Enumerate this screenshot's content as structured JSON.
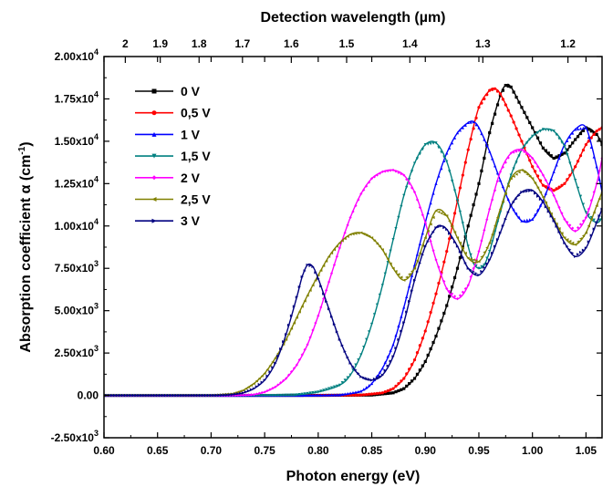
{
  "chart_data": {
    "type": "line",
    "xlabel": "Photon energy (eV)",
    "x2label": "Detection wavelength (µm)",
    "ylabel_main": "Absorption coefficient α (cm",
    "ylabel_sup": "-1",
    "ylabel_end": ")",
    "xlim": [
      0.6,
      1.065
    ],
    "ylim": [
      -2500,
      20000
    ],
    "x_ticks": [
      0.6,
      0.65,
      0.7,
      0.75,
      0.8,
      0.85,
      0.9,
      0.95,
      1.0,
      1.05
    ],
    "x_tick_labels": [
      "0.60",
      "0.65",
      "0.70",
      "0.75",
      "0.80",
      "0.85",
      "0.90",
      "0.95",
      "1.00",
      "1.05"
    ],
    "y_ticks": [
      -2500,
      0,
      2500,
      5000,
      7500,
      10000,
      12500,
      15000,
      17500,
      20000
    ],
    "y_tick_labels": [
      {
        "mant": "-2.50x10",
        "exp": "3"
      },
      {
        "mant": "0.00",
        "exp": ""
      },
      {
        "mant": "2.50x10",
        "exp": "3"
      },
      {
        "mant": "5.00x10",
        "exp": "3"
      },
      {
        "mant": "7.50x10",
        "exp": "3"
      },
      {
        "mant": "1.00x10",
        "exp": "4"
      },
      {
        "mant": "1.25x10",
        "exp": "4"
      },
      {
        "mant": "1.50x10",
        "exp": "4"
      },
      {
        "mant": "1.75x10",
        "exp": "4"
      },
      {
        "mant": "2.00x10",
        "exp": "4"
      }
    ],
    "top_ticks": [
      {
        "um": 2.0,
        "label": "2"
      },
      {
        "um": 1.9,
        "label": "1.9"
      },
      {
        "um": 1.8,
        "label": "1.8"
      },
      {
        "um": 1.7,
        "label": "1.7"
      },
      {
        "um": 1.6,
        "label": "1.6"
      },
      {
        "um": 1.5,
        "label": "1.5"
      },
      {
        "um": 1.4,
        "label": "1.4"
      },
      {
        "um": 1.3,
        "label": "1.3"
      },
      {
        "um": 1.2,
        "label": "1.2"
      }
    ],
    "grid": false,
    "legend_position": "top-left",
    "series": [
      {
        "name": "0 V",
        "color": "#000000",
        "marker": "square",
        "points": [
          [
            0.6,
            0
          ],
          [
            0.8,
            0
          ],
          [
            0.85,
            20
          ],
          [
            0.87,
            150
          ],
          [
            0.88,
            400
          ],
          [
            0.89,
            1000
          ],
          [
            0.9,
            2000
          ],
          [
            0.91,
            3500
          ],
          [
            0.92,
            5300
          ],
          [
            0.93,
            7500
          ],
          [
            0.94,
            10000
          ],
          [
            0.95,
            12500
          ],
          [
            0.96,
            15500
          ],
          [
            0.97,
            17700
          ],
          [
            0.975,
            18300
          ],
          [
            0.98,
            18200
          ],
          [
            0.99,
            17000
          ],
          [
            1.0,
            15800
          ],
          [
            1.01,
            14600
          ],
          [
            1.02,
            14000
          ],
          [
            1.03,
            14300
          ],
          [
            1.04,
            15100
          ],
          [
            1.05,
            15800
          ],
          [
            1.06,
            15400
          ],
          [
            1.065,
            14800
          ]
        ]
      },
      {
        "name": "0,5 V",
        "color": "#ff0000",
        "marker": "circle",
        "points": [
          [
            0.6,
            0
          ],
          [
            0.8,
            0
          ],
          [
            0.84,
            20
          ],
          [
            0.86,
            150
          ],
          [
            0.87,
            400
          ],
          [
            0.88,
            1000
          ],
          [
            0.89,
            2100
          ],
          [
            0.9,
            3800
          ],
          [
            0.91,
            6000
          ],
          [
            0.92,
            8500
          ],
          [
            0.93,
            11500
          ],
          [
            0.94,
            14500
          ],
          [
            0.95,
            17000
          ],
          [
            0.96,
            18000
          ],
          [
            0.965,
            18100
          ],
          [
            0.97,
            17800
          ],
          [
            0.98,
            16500
          ],
          [
            0.99,
            15000
          ],
          [
            1.0,
            13500
          ],
          [
            1.01,
            12400
          ],
          [
            1.02,
            12100
          ],
          [
            1.03,
            12500
          ],
          [
            1.04,
            13500
          ],
          [
            1.05,
            14800
          ],
          [
            1.06,
            15600
          ],
          [
            1.065,
            15800
          ]
        ]
      },
      {
        "name": "1 V",
        "color": "#0000ff",
        "marker": "triangle",
        "points": [
          [
            0.6,
            0
          ],
          [
            0.78,
            0
          ],
          [
            0.82,
            30
          ],
          [
            0.84,
            250
          ],
          [
            0.85,
            700
          ],
          [
            0.86,
            1600
          ],
          [
            0.87,
            3000
          ],
          [
            0.88,
            5200
          ],
          [
            0.89,
            7700
          ],
          [
            0.9,
            10200
          ],
          [
            0.91,
            12500
          ],
          [
            0.92,
            14300
          ],
          [
            0.93,
            15500
          ],
          [
            0.94,
            16100
          ],
          [
            0.945,
            16150
          ],
          [
            0.95,
            15800
          ],
          [
            0.96,
            14400
          ],
          [
            0.97,
            12700
          ],
          [
            0.98,
            11200
          ],
          [
            0.99,
            10300
          ],
          [
            1.0,
            10400
          ],
          [
            1.01,
            11500
          ],
          [
            1.02,
            13200
          ],
          [
            1.03,
            14800
          ],
          [
            1.04,
            15700
          ],
          [
            1.05,
            15800
          ],
          [
            1.06,
            13500
          ],
          [
            1.065,
            12000
          ]
        ]
      },
      {
        "name": "1,5 V",
        "color": "#008080",
        "marker": "down-triangle",
        "points": [
          [
            0.6,
            0
          ],
          [
            0.76,
            0
          ],
          [
            0.78,
            30
          ],
          [
            0.8,
            200
          ],
          [
            0.82,
            600
          ],
          [
            0.83,
            1200
          ],
          [
            0.84,
            2400
          ],
          [
            0.85,
            4200
          ],
          [
            0.86,
            6500
          ],
          [
            0.87,
            9200
          ],
          [
            0.88,
            11800
          ],
          [
            0.89,
            13700
          ],
          [
            0.9,
            14800
          ],
          [
            0.91,
            14900
          ],
          [
            0.92,
            13800
          ],
          [
            0.93,
            11500
          ],
          [
            0.94,
            8800
          ],
          [
            0.945,
            7800
          ],
          [
            0.95,
            7500
          ],
          [
            0.955,
            7700
          ],
          [
            0.96,
            8500
          ],
          [
            0.97,
            10800
          ],
          [
            0.98,
            13000
          ],
          [
            0.99,
            14500
          ],
          [
            1.0,
            15300
          ],
          [
            1.01,
            15700
          ],
          [
            1.02,
            15600
          ],
          [
            1.03,
            14700
          ],
          [
            1.04,
            12700
          ],
          [
            1.05,
            10800
          ],
          [
            1.06,
            10200
          ],
          [
            1.065,
            10500
          ]
        ]
      },
      {
        "name": "2 V",
        "color": "#ff00ff",
        "marker": "diamond",
        "points": [
          [
            0.6,
            0
          ],
          [
            0.72,
            0
          ],
          [
            0.74,
            50
          ],
          [
            0.75,
            200
          ],
          [
            0.76,
            500
          ],
          [
            0.77,
            1000
          ],
          [
            0.78,
            1800
          ],
          [
            0.79,
            3000
          ],
          [
            0.8,
            4700
          ],
          [
            0.81,
            6700
          ],
          [
            0.82,
            8700
          ],
          [
            0.83,
            10500
          ],
          [
            0.84,
            11900
          ],
          [
            0.85,
            12800
          ],
          [
            0.86,
            13200
          ],
          [
            0.87,
            13300
          ],
          [
            0.88,
            13000
          ],
          [
            0.89,
            12000
          ],
          [
            0.9,
            10200
          ],
          [
            0.91,
            8000
          ],
          [
            0.92,
            6300
          ],
          [
            0.93,
            5700
          ],
          [
            0.94,
            6500
          ],
          [
            0.95,
            8500
          ],
          [
            0.96,
            11000
          ],
          [
            0.97,
            13200
          ],
          [
            0.98,
            14300
          ],
          [
            0.99,
            14500
          ],
          [
            1.0,
            14000
          ],
          [
            1.01,
            13000
          ],
          [
            1.02,
            11800
          ],
          [
            1.03,
            10400
          ],
          [
            1.04,
            9700
          ],
          [
            1.05,
            10500
          ],
          [
            1.06,
            12500
          ],
          [
            1.065,
            14000
          ]
        ]
      },
      {
        "name": "2,5 V",
        "color": "#808000",
        "marker": "left-triangle",
        "points": [
          [
            0.6,
            0
          ],
          [
            0.7,
            0
          ],
          [
            0.72,
            100
          ],
          [
            0.73,
            300
          ],
          [
            0.74,
            700
          ],
          [
            0.75,
            1300
          ],
          [
            0.76,
            2200
          ],
          [
            0.77,
            3300
          ],
          [
            0.78,
            4600
          ],
          [
            0.79,
            5900
          ],
          [
            0.8,
            7100
          ],
          [
            0.81,
            8200
          ],
          [
            0.82,
            9000
          ],
          [
            0.83,
            9500
          ],
          [
            0.84,
            9600
          ],
          [
            0.85,
            9300
          ],
          [
            0.86,
            8600
          ],
          [
            0.87,
            7500
          ],
          [
            0.88,
            6800
          ],
          [
            0.89,
            7500
          ],
          [
            0.9,
            9300
          ],
          [
            0.91,
            10900
          ],
          [
            0.92,
            10600
          ],
          [
            0.93,
            9300
          ],
          [
            0.94,
            8100
          ],
          [
            0.95,
            7900
          ],
          [
            0.96,
            9000
          ],
          [
            0.97,
            11000
          ],
          [
            0.98,
            12800
          ],
          [
            0.99,
            13300
          ],
          [
            1.0,
            12800
          ],
          [
            1.01,
            11700
          ],
          [
            1.02,
            10400
          ],
          [
            1.03,
            9300
          ],
          [
            1.04,
            8900
          ],
          [
            1.05,
            9600
          ],
          [
            1.06,
            11200
          ],
          [
            1.065,
            12000
          ]
        ]
      },
      {
        "name": "3 V",
        "color": "#000080",
        "marker": "right-triangle",
        "points": [
          [
            0.6,
            0
          ],
          [
            0.7,
            0
          ],
          [
            0.72,
            50
          ],
          [
            0.73,
            150
          ],
          [
            0.74,
            400
          ],
          [
            0.75,
            900
          ],
          [
            0.76,
            1900
          ],
          [
            0.77,
            3600
          ],
          [
            0.78,
            5800
          ],
          [
            0.785,
            7000
          ],
          [
            0.79,
            7700
          ],
          [
            0.795,
            7600
          ],
          [
            0.8,
            6900
          ],
          [
            0.81,
            5100
          ],
          [
            0.82,
            3300
          ],
          [
            0.83,
            1900
          ],
          [
            0.84,
            1100
          ],
          [
            0.85,
            900
          ],
          [
            0.86,
            1200
          ],
          [
            0.87,
            2300
          ],
          [
            0.88,
            4300
          ],
          [
            0.89,
            6800
          ],
          [
            0.9,
            8800
          ],
          [
            0.91,
            9900
          ],
          [
            0.915,
            10000
          ],
          [
            0.92,
            9800
          ],
          [
            0.93,
            8800
          ],
          [
            0.94,
            7500
          ],
          [
            0.95,
            7100
          ],
          [
            0.96,
            8000
          ],
          [
            0.97,
            9600
          ],
          [
            0.98,
            11200
          ],
          [
            0.99,
            12000
          ],
          [
            1.0,
            12100
          ],
          [
            1.01,
            11400
          ],
          [
            1.02,
            10300
          ],
          [
            1.03,
            9000
          ],
          [
            1.04,
            8200
          ],
          [
            1.05,
            8700
          ],
          [
            1.06,
            10200
          ],
          [
            1.065,
            11000
          ]
        ]
      }
    ]
  }
}
